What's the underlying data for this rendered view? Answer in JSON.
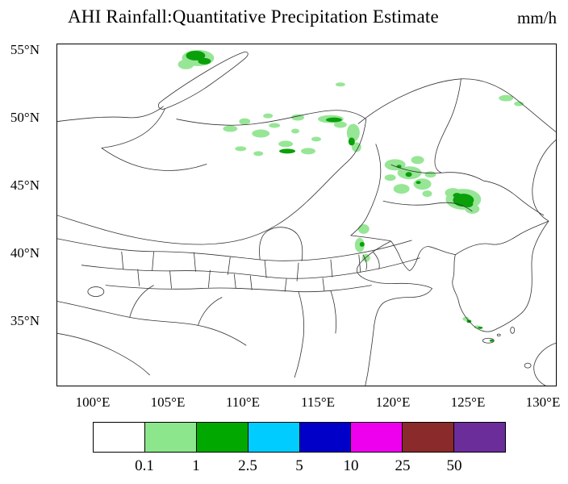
{
  "title": "AHI Rainfall:Quantitative Precipitation Estimate",
  "units": "mm/h",
  "map": {
    "lat_labels": [
      "55°N",
      "50°N",
      "45°N",
      "40°N",
      "35°N"
    ],
    "lon_labels": [
      "100°E",
      "105°E",
      "110°E",
      "115°E",
      "120°E",
      "125°E",
      "130°E"
    ]
  },
  "colorbar": {
    "colors": [
      "#ffffff",
      "#8ce68c",
      "#00a800",
      "#00ccff",
      "#0000c8",
      "#ee00ee",
      "#8b2a2a",
      "#6a2d9a"
    ],
    "tick_labels": [
      "0.1",
      "1",
      "2.5",
      "5",
      "10",
      "25",
      "50"
    ]
  },
  "chart_data": {
    "type": "heatmap",
    "title": "AHI Rainfall:Quantitative Precipitation Estimate",
    "units": "mm/h",
    "lat_ticks": [
      "35°N",
      "40°N",
      "45°N",
      "50°N",
      "55°N"
    ],
    "lon_ticks": [
      "100°E",
      "105°E",
      "110°E",
      "115°E",
      "120°E",
      "125°E",
      "130°E"
    ],
    "scale_breaks": [
      0.1,
      1,
      2.5,
      5,
      10,
      25,
      50
    ],
    "scale_colors": [
      "#ffffff",
      "#8ce68c",
      "#00a800",
      "#00ccff",
      "#0000c8",
      "#ee00ee",
      "#8b2a2a",
      "#6a2d9a"
    ],
    "legend_position": "bottom",
    "notes": "Satellite-derived rain-rate shading; values 0.1-2.5 mm/h (light/dark green) scattered over 43-55N, 103-126E; strongest cells near 125E,43N and 105E,55N"
  }
}
